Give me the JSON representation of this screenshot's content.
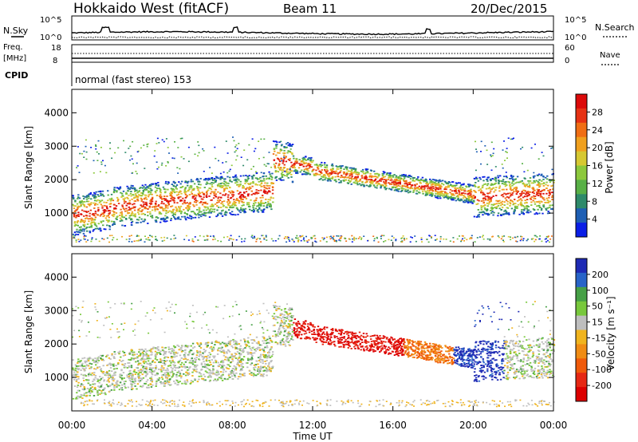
{
  "header": {
    "radar": "Hokkaido West (fitACF)",
    "beam": "Beam 11",
    "date": "20/Dec/2015"
  },
  "top_panels": {
    "nsky_label": "N.Sky",
    "nsearch_label": "N.Search",
    "noise_ticks_left": [
      "10^5",
      "10^0"
    ],
    "noise_ticks_right": [
      "10^5",
      "10^0"
    ],
    "freq_label_lines": [
      "Freq.",
      "[MHz]"
    ],
    "freq_ticks": [
      "18",
      "8"
    ],
    "nave_label": "Nave",
    "nave_ticks": [
      "60",
      "0"
    ],
    "cpid_label": "CPID",
    "cpid_text": "normal (fast stereo) 153"
  },
  "chart_data": [
    {
      "type": "heatmap",
      "name": "power",
      "ylabel": "Slant Range [km]",
      "ylim": [
        0,
        4700
      ],
      "yticks": [
        "1000",
        "2000",
        "3000",
        "4000"
      ],
      "xlabel": "Time UT",
      "x_ticks": [
        "00:00",
        "04:00",
        "08:00",
        "12:00",
        "16:00",
        "20:00",
        "00:00"
      ],
      "xlim_hours": [
        0,
        24
      ],
      "colorbar": {
        "label": "Power [dB]",
        "ticks": [
          "4",
          "8",
          "12",
          "16",
          "20",
          "24",
          "28"
        ],
        "colors": [
          "#0a1ee6",
          "#1e5fb4",
          "#2e8a6a",
          "#58b046",
          "#8cc83c",
          "#d6c832",
          "#f0a01e",
          "#f06e14",
          "#e63214",
          "#dc0a0a"
        ]
      }
    },
    {
      "type": "heatmap",
      "name": "velocity",
      "ylabel": "Slant Range [km]",
      "ylim": [
        0,
        4700
      ],
      "yticks": [
        "1000",
        "2000",
        "3000",
        "4000"
      ],
      "xlabel": "Time UT",
      "x_ticks": [
        "00:00",
        "04:00",
        "08:00",
        "12:00",
        "16:00",
        "20:00",
        "00:00"
      ],
      "xlim_hours": [
        0,
        24
      ],
      "colorbar": {
        "label": "Velocity [m s⁻¹]",
        "ticks": [
          "200",
          "100",
          "50",
          "15",
          "-15",
          "-50",
          "-100",
          "-200"
        ],
        "colors": [
          "#1e2ab4",
          "#2864c8",
          "#46a046",
          "#78c83c",
          "#bebebe",
          "#f0b41e",
          "#f08c14",
          "#f05a0a",
          "#e62814",
          "#dc0000"
        ]
      }
    }
  ],
  "x_axis": {
    "ticks": [
      "00:00",
      "04:00",
      "08:00",
      "12:00",
      "16:00",
      "20:00",
      "00:00"
    ],
    "label": "Time UT"
  }
}
